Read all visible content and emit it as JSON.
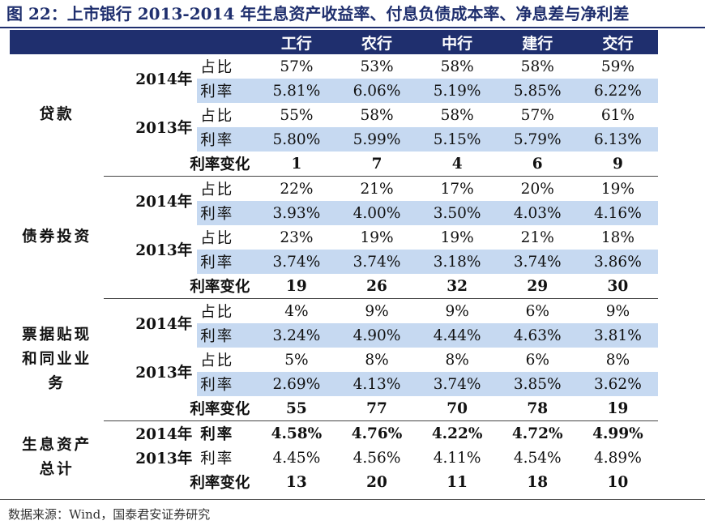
{
  "title": "图 22：上市银行 2013-2014 年生息资产收益率、付息负债成本率、净息差与净利差",
  "header": {
    "blank": "",
    "banks": [
      "工行",
      "农行",
      "中行",
      "建行",
      "交行"
    ]
  },
  "labels": {
    "ratio": "占比",
    "rate": "利率",
    "change": "利率变化",
    "y2014": "2014年",
    "y2013": "2013年"
  },
  "sections": [
    {
      "name": "贷款",
      "y2014": {
        "share": [
          "57%",
          "53%",
          "58%",
          "58%",
          "59%"
        ],
        "rate": [
          "5.81%",
          "6.06%",
          "5.19%",
          "5.85%",
          "6.22%"
        ]
      },
      "y2013": {
        "share": [
          "55%",
          "58%",
          "58%",
          "57%",
          "61%"
        ],
        "rate": [
          "5.80%",
          "5.99%",
          "5.15%",
          "5.79%",
          "6.13%"
        ]
      },
      "change": [
        "1",
        "7",
        "4",
        "6",
        "9"
      ]
    },
    {
      "name": "债券投资",
      "y2014": {
        "share": [
          "22%",
          "21%",
          "17%",
          "20%",
          "19%"
        ],
        "rate": [
          "3.93%",
          "4.00%",
          "3.50%",
          "4.03%",
          "4.16%"
        ]
      },
      "y2013": {
        "share": [
          "23%",
          "19%",
          "19%",
          "21%",
          "18%"
        ],
        "rate": [
          "3.74%",
          "3.74%",
          "3.18%",
          "3.74%",
          "3.86%"
        ]
      },
      "change": [
        "19",
        "26",
        "32",
        "29",
        "30"
      ]
    },
    {
      "name_lines": [
        "票据贴现",
        "和同业业",
        "务"
      ],
      "y2014": {
        "share": [
          "4%",
          "9%",
          "9%",
          "6%",
          "9%"
        ],
        "rate": [
          "3.24%",
          "4.90%",
          "4.44%",
          "4.63%",
          "3.81%"
        ]
      },
      "y2013": {
        "share": [
          "5%",
          "8%",
          "8%",
          "6%",
          "8%"
        ],
        "rate": [
          "2.69%",
          "4.13%",
          "3.74%",
          "3.85%",
          "3.62%"
        ]
      },
      "change": [
        "55",
        "77",
        "70",
        "78",
        "19"
      ]
    },
    {
      "name_lines": [
        "生息资产",
        "总计"
      ],
      "y2014": {
        "rate": [
          "4.58%",
          "4.76%",
          "4.22%",
          "4.72%",
          "4.99%"
        ]
      },
      "y2013": {
        "rate": [
          "4.45%",
          "4.56%",
          "4.11%",
          "4.54%",
          "4.89%"
        ]
      },
      "change": [
        "13",
        "20",
        "11",
        "18",
        "10"
      ]
    }
  ],
  "source": "数据来源：Wind，国泰君安证券研究"
}
